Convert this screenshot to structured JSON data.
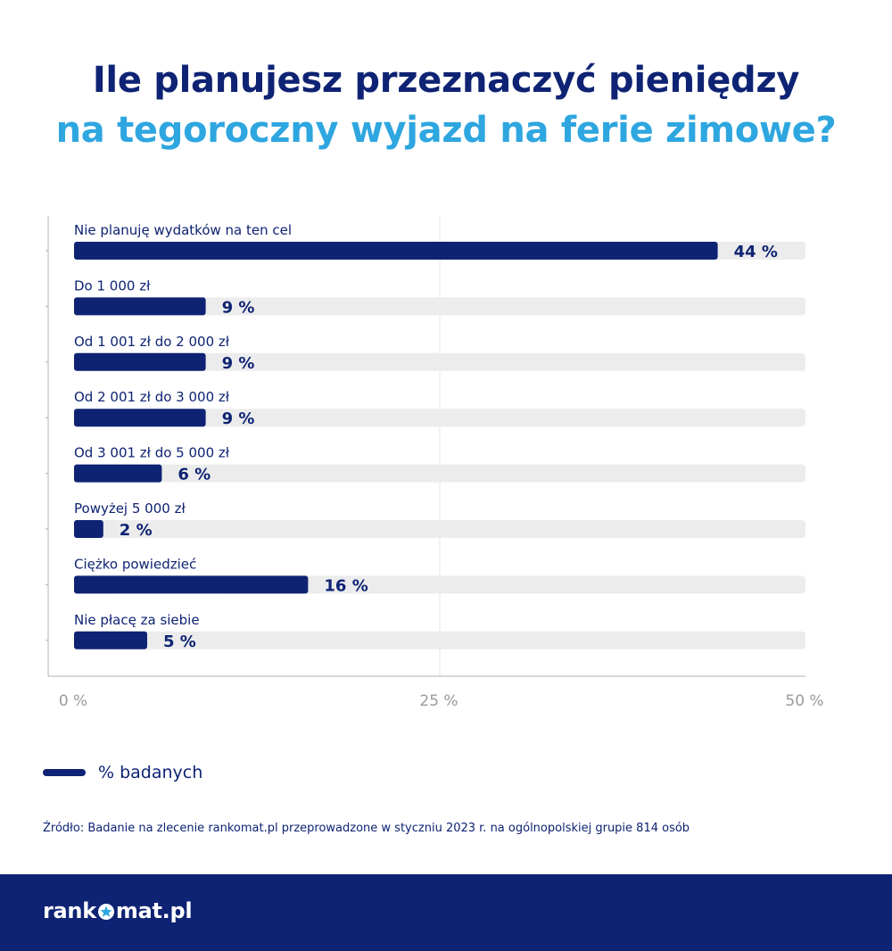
{
  "title": {
    "line1": "Ile planujesz przeznaczyć pieniędzy",
    "line2": "na tegoroczny wyjazd na ferie zimowe?"
  },
  "chart_data": {
    "type": "bar",
    "orientation": "horizontal",
    "categories": [
      "Nie planuję wydatków na ten cel",
      "Do 1 000 zł",
      "Od 1 001 zł do 2 000 zł",
      "Od 2 001 zł do 3 000 zł",
      "Od 3 001 zł do 5 000 zł",
      "Powyżej 5 000 zł",
      "Ciężko powiedzieć",
      "Nie płacę za siebie"
    ],
    "series": [
      {
        "name": "% badanych",
        "values": [
          44,
          9,
          9,
          9,
          6,
          2,
          16,
          5
        ]
      }
    ],
    "value_labels": [
      "44 %",
      "9 %",
      "9 %",
      "9 %",
      "6 %",
      "2 %",
      "16 %",
      "5 %"
    ],
    "xlim": [
      0,
      50
    ],
    "x_ticks": [
      0,
      25,
      50
    ],
    "x_tick_labels": [
      "0 %",
      "25 %",
      "50 %"
    ],
    "grid": "vertical",
    "legend_position": "bottom-left",
    "colors": {
      "bar": "#0e2373",
      "track": "#ececec",
      "label": "#0e2373",
      "axis": "#b0b0b0"
    }
  },
  "legend": {
    "label": "% badanych"
  },
  "source": "Źródło: Badanie na zlecenie rankomat.pl przeprowadzone w styczniu 2023 r. na ogólnopolskiej grupie 814 osób",
  "footer": {
    "logo": {
      "part1": "rank",
      "part2": "mat.pl",
      "icon": "star-o-icon"
    },
    "colors": {
      "background": "#0e2373"
    }
  }
}
